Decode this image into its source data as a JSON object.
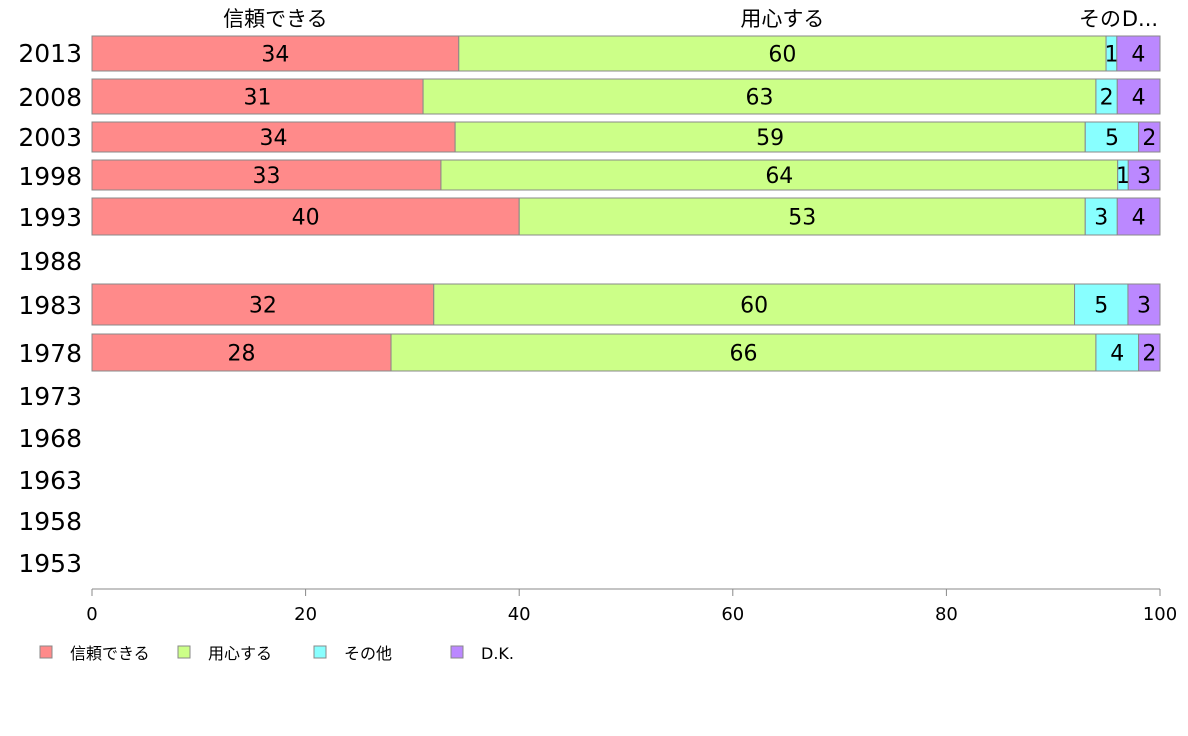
{
  "chart_data": {
    "type": "bar",
    "orientation": "horizontal",
    "stacked": true,
    "categories": [
      "2013",
      "2008",
      "2003",
      "1998",
      "1993",
      "1988",
      "1983",
      "1978",
      "1973",
      "1968",
      "1963",
      "1958",
      "1953"
    ],
    "series": [
      {
        "name": "信頼できる",
        "color": "#ff8a8a",
        "values": [
          34,
          31,
          34,
          33,
          40,
          null,
          32,
          28,
          null,
          null,
          null,
          null,
          null
        ]
      },
      {
        "name": "用心する",
        "color": "#ccff88",
        "values": [
          60,
          63,
          59,
          64,
          53,
          null,
          60,
          66,
          null,
          null,
          null,
          null,
          null
        ]
      },
      {
        "name": "その他",
        "color": "#88ffff",
        "values": [
          1,
          2,
          5,
          1,
          3,
          null,
          5,
          4,
          null,
          null,
          null,
          null,
          null
        ]
      },
      {
        "name": "D.K.",
        "color": "#bb88ff",
        "values": [
          4,
          4,
          2,
          3,
          4,
          null,
          3,
          2,
          null,
          null,
          null,
          null,
          null
        ]
      }
    ],
    "column_headers": [
      "信頼できる",
      "用心する",
      "その",
      "D..."
    ],
    "xlim": [
      0,
      100
    ],
    "xticks": [
      "0",
      "20",
      "40",
      "60",
      "80",
      "100"
    ],
    "legend": [
      "信頼できる",
      "用心する",
      "その他",
      "D.K."
    ],
    "legend_position": "bottom-left",
    "grid": false
  }
}
